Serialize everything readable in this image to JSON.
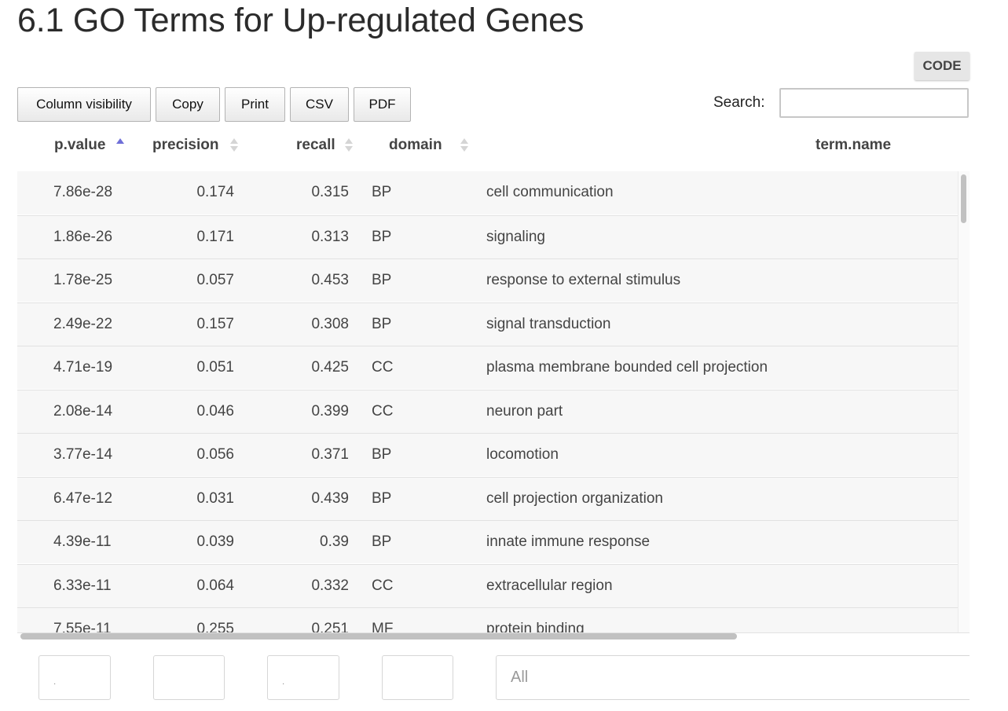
{
  "page": {
    "title": "6.1 GO Terms for Up-regulated Genes"
  },
  "code_button": {
    "label": "CODE"
  },
  "toolbar": {
    "buttons": [
      "Column visibility",
      "Copy",
      "Print",
      "CSV",
      "PDF"
    ]
  },
  "search": {
    "label": "Search:",
    "value": ""
  },
  "table": {
    "columns": [
      "p.value",
      "precision",
      "recall",
      "domain",
      "term.name"
    ],
    "sorted_column": "p.value",
    "sort_direction": "ascending",
    "rows": [
      {
        "p_value": "7.86e-28",
        "precision": "0.174",
        "recall": "0.315",
        "domain": "BP",
        "term_name": "cell communication"
      },
      {
        "p_value": "1.86e-26",
        "precision": "0.171",
        "recall": "0.313",
        "domain": "BP",
        "term_name": "signaling"
      },
      {
        "p_value": "1.78e-25",
        "precision": "0.057",
        "recall": "0.453",
        "domain": "BP",
        "term_name": "response to external stimulus"
      },
      {
        "p_value": "2.49e-22",
        "precision": "0.157",
        "recall": "0.308",
        "domain": "BP",
        "term_name": "signal transduction"
      },
      {
        "p_value": "4.71e-19",
        "precision": "0.051",
        "recall": "0.425",
        "domain": "CC",
        "term_name": "plasma membrane bounded cell projection"
      },
      {
        "p_value": "2.08e-14",
        "precision": "0.046",
        "recall": "0.399",
        "domain": "CC",
        "term_name": "neuron part"
      },
      {
        "p_value": "3.77e-14",
        "precision": "0.056",
        "recall": "0.371",
        "domain": "BP",
        "term_name": "locomotion"
      },
      {
        "p_value": "6.47e-12",
        "precision": "0.031",
        "recall": "0.439",
        "domain": "BP",
        "term_name": "cell projection organization"
      },
      {
        "p_value": "4.39e-11",
        "precision": "0.039",
        "recall": "0.39",
        "domain": "BP",
        "term_name": "innate immune response"
      },
      {
        "p_value": "6.33e-11",
        "precision": "0.064",
        "recall": "0.332",
        "domain": "CC",
        "term_name": "extracellular region"
      },
      {
        "p_value": "7.55e-11",
        "precision": "0.255",
        "recall": "0.251",
        "domain": "MF",
        "term_name": "protein binding"
      }
    ]
  },
  "filters": {
    "domain_filter": "All"
  },
  "colors": {
    "sort_active": "#6f6fd8",
    "row_background": "#f7f7f7",
    "code_button_bg": "#e6e6e6"
  }
}
